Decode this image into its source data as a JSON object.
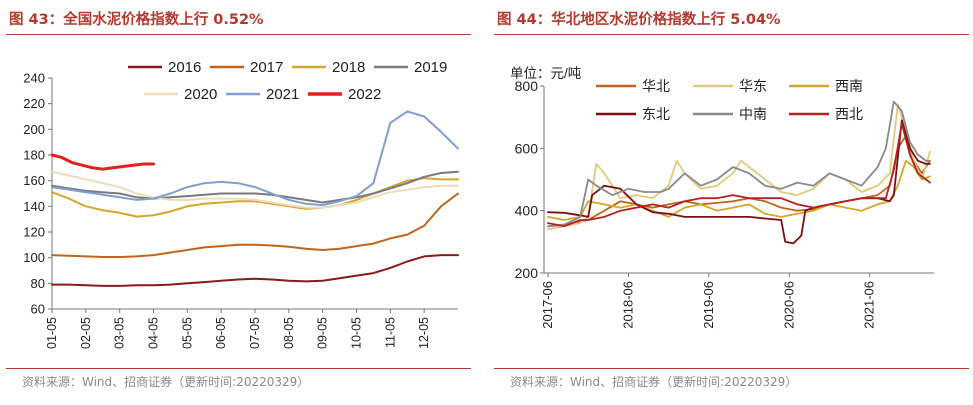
{
  "left": {
    "title": "图 43：全国水泥价格指数上行 0.52%",
    "source": "资料来源：Wind、招商证券（更新时间:20220329）"
  },
  "right": {
    "title": "图 44：华北地区水泥价格指数上行 5.04%",
    "source": "资料来源：Wind、招商证券（更新时间:20220329）"
  },
  "chart_data": [
    {
      "type": "line",
      "title": "全国水泥价格指数上行 0.52%",
      "xlabel": "",
      "ylabel": "",
      "ylim": [
        60,
        240
      ],
      "yticks": [
        60,
        80,
        100,
        120,
        140,
        160,
        180,
        200,
        220,
        240
      ],
      "xlim": [
        0,
        12
      ],
      "categories": [
        "01-05",
        "02-05",
        "03-05",
        "04-05",
        "05-05",
        "06-05",
        "07-05",
        "08-05",
        "09-05",
        "10-05",
        "11-05",
        "12-05"
      ],
      "legend": "top",
      "grid": false,
      "series": [
        {
          "name": "2016",
          "color": "#8b1a1a",
          "width": 2,
          "x": [
            0,
            0.5,
            1,
            1.5,
            2,
            2.5,
            3,
            3.5,
            4,
            4.5,
            5,
            5.5,
            6,
            6.5,
            7,
            7.5,
            8,
            8.5,
            9,
            9.5,
            10,
            10.5,
            11,
            11.5,
            12
          ],
          "values": [
            79,
            79,
            78.5,
            78,
            78,
            78.5,
            78.5,
            79,
            80,
            81,
            82,
            83,
            83.5,
            83,
            82,
            81.5,
            82,
            84,
            86,
            88,
            92,
            97,
            101,
            102,
            102
          ]
        },
        {
          "name": "2017",
          "color": "#c0651c",
          "width": 2,
          "x": [
            0,
            0.5,
            1,
            1.5,
            2,
            2.5,
            3,
            3.5,
            4,
            4.5,
            5,
            5.5,
            6,
            6.5,
            7,
            7.5,
            8,
            8.5,
            9,
            9.5,
            10,
            10.5,
            11,
            11.5,
            12
          ],
          "values": [
            102,
            101.5,
            101,
            100.5,
            100.5,
            101,
            102,
            104,
            106,
            108,
            109,
            110,
            110,
            109.5,
            108.5,
            107,
            106,
            107,
            109,
            111,
            115,
            118,
            125,
            140,
            150
          ]
        },
        {
          "name": "2018",
          "color": "#d4a62a",
          "width": 2,
          "x": [
            0,
            0.5,
            1,
            1.5,
            2,
            2.5,
            3,
            3.5,
            4,
            4.5,
            5,
            5.5,
            6,
            6.5,
            7,
            7.5,
            8,
            8.5,
            9,
            9.5,
            10,
            10.5,
            11,
            11.5,
            12
          ],
          "values": [
            151,
            146,
            140,
            137,
            135,
            132,
            133,
            136,
            140,
            142,
            143,
            144,
            144,
            142,
            140,
            138,
            139,
            141,
            145,
            150,
            155,
            160,
            162,
            161,
            161
          ]
        },
        {
          "name": "2019",
          "color": "#7a7a7a",
          "width": 2,
          "x": [
            0,
            0.5,
            1,
            1.5,
            2,
            2.5,
            3,
            3.5,
            4,
            4.5,
            5,
            5.5,
            6,
            6.5,
            7,
            7.5,
            8,
            8.5,
            9,
            9.5,
            10,
            10.5,
            11,
            11.5,
            12
          ],
          "values": [
            156,
            154,
            152,
            151,
            150,
            147,
            146,
            147,
            148,
            149,
            150,
            150,
            150,
            149,
            147,
            145,
            143,
            145,
            147,
            150,
            154,
            158,
            163,
            166,
            167
          ]
        },
        {
          "name": "2020",
          "color": "#efdcb8",
          "width": 2,
          "x": [
            0,
            0.5,
            1,
            1.5,
            2,
            2.5,
            3,
            3.5,
            4,
            4.5,
            5,
            5.5,
            6,
            6.5,
            7,
            7.5,
            8,
            8.5,
            9,
            9.5,
            10,
            10.5,
            11,
            11.5,
            12
          ],
          "values": [
            167,
            164,
            161,
            158,
            155,
            150,
            147,
            145,
            145,
            146,
            146,
            146,
            145,
            143,
            141,
            139,
            139,
            141,
            143,
            147,
            151,
            153,
            155,
            156,
            156
          ]
        },
        {
          "name": "2021",
          "color": "#7f9fd4",
          "width": 2,
          "x": [
            0,
            0.5,
            1,
            1.5,
            2,
            2.5,
            3,
            3.5,
            4,
            4.5,
            5,
            5.5,
            6,
            6.5,
            7,
            7.5,
            8,
            8.5,
            9,
            9.5,
            10,
            10.5,
            11,
            11.5,
            12
          ],
          "values": [
            155,
            153,
            151,
            149,
            147,
            145,
            146,
            150,
            155,
            158,
            159,
            158,
            155,
            150,
            145,
            142,
            141,
            144,
            148,
            158,
            205,
            214,
            210,
            198,
            185
          ]
        },
        {
          "name": "2022",
          "color": "#e3201c",
          "width": 3,
          "x": [
            0,
            0.3,
            0.6,
            0.9,
            1.2,
            1.5,
            1.8,
            2.1,
            2.4,
            2.7,
            3
          ],
          "values": [
            180,
            178,
            174,
            172,
            170,
            169,
            170,
            171,
            172,
            173,
            173
          ]
        }
      ]
    },
    {
      "type": "line",
      "title": "华北地区水泥价格指数上行 5.04%",
      "unit_label": "单位：元/吨",
      "ylim": [
        200,
        800
      ],
      "yticks": [
        200,
        400,
        600,
        800
      ],
      "xlim": [
        2017.45,
        2022.3
      ],
      "categories": [
        "2017-06",
        "2018-06",
        "2019-06",
        "2020-06",
        "2021-06"
      ],
      "category_positions": [
        2017.5,
        2018.5,
        2019.5,
        2020.5,
        2021.5
      ],
      "legend": "top",
      "grid": false,
      "series": [
        {
          "name": "华北",
          "color": "#c0651c",
          "width": 1.8,
          "x": [
            2017.5,
            2017.7,
            2017.9,
            2018.0,
            2018.2,
            2018.4,
            2018.6,
            2018.8,
            2019.0,
            2019.2,
            2019.4,
            2019.6,
            2019.8,
            2020.0,
            2020.2,
            2020.4,
            2020.6,
            2020.8,
            2021.0,
            2021.2,
            2021.4,
            2021.6,
            2021.75,
            2021.85,
            2021.95,
            2022.05,
            2022.15,
            2022.25
          ],
          "values": [
            350,
            355,
            365,
            370,
            400,
            430,
            420,
            410,
            420,
            430,
            420,
            425,
            430,
            440,
            430,
            410,
            400,
            405,
            420,
            430,
            440,
            450,
            480,
            600,
            640,
            560,
            520,
            560
          ]
        },
        {
          "name": "华东",
          "color": "#e2c97a",
          "width": 1.8,
          "x": [
            2017.5,
            2017.7,
            2017.9,
            2018.0,
            2018.1,
            2018.2,
            2018.4,
            2018.6,
            2018.8,
            2019.0,
            2019.1,
            2019.2,
            2019.4,
            2019.6,
            2019.8,
            2019.9,
            2020.0,
            2020.2,
            2020.4,
            2020.6,
            2020.8,
            2021.0,
            2021.2,
            2021.4,
            2021.6,
            2021.75,
            2021.85,
            2021.95,
            2022.05,
            2022.15,
            2022.25
          ],
          "values": [
            340,
            350,
            360,
            380,
            550,
            520,
            440,
            450,
            440,
            480,
            560,
            520,
            470,
            480,
            520,
            560,
            540,
            500,
            460,
            450,
            470,
            520,
            500,
            460,
            480,
            520,
            740,
            660,
            560,
            500,
            590
          ]
        },
        {
          "name": "西南",
          "color": "#d4a62a",
          "width": 1.8,
          "x": [
            2017.5,
            2017.7,
            2017.9,
            2018.0,
            2018.2,
            2018.4,
            2018.6,
            2018.8,
            2019.0,
            2019.2,
            2019.4,
            2019.6,
            2019.8,
            2020.0,
            2020.2,
            2020.4,
            2020.6,
            2020.8,
            2021.0,
            2021.2,
            2021.4,
            2021.6,
            2021.75,
            2021.85,
            2021.95,
            2022.05,
            2022.15,
            2022.25
          ],
          "values": [
            380,
            370,
            380,
            430,
            420,
            410,
            420,
            400,
            380,
            410,
            420,
            400,
            410,
            420,
            390,
            380,
            390,
            400,
            420,
            410,
            400,
            420,
            430,
            480,
            560,
            540,
            500,
            510
          ]
        },
        {
          "name": "东北",
          "color": "#7a0f0f",
          "width": 1.8,
          "x": [
            2017.5,
            2017.7,
            2017.9,
            2018.0,
            2018.05,
            2018.2,
            2018.4,
            2018.6,
            2018.8,
            2019.0,
            2019.2,
            2019.4,
            2019.6,
            2019.8,
            2020.0,
            2020.2,
            2020.4,
            2020.45,
            2020.55,
            2020.65,
            2020.7,
            2020.8,
            2021.0,
            2021.2,
            2021.4,
            2021.6,
            2021.75,
            2021.8,
            2021.9,
            2022.0,
            2022.1,
            2022.2,
            2022.25
          ],
          "values": [
            395,
            393,
            385,
            380,
            450,
            480,
            470,
            420,
            395,
            390,
            380,
            380,
            380,
            380,
            380,
            375,
            370,
            300,
            295,
            320,
            400,
            410,
            420,
            430,
            440,
            440,
            430,
            450,
            690,
            600,
            560,
            550,
            550
          ]
        },
        {
          "name": "中南",
          "color": "#8a8a8a",
          "width": 1.8,
          "x": [
            2017.5,
            2017.7,
            2017.9,
            2018.0,
            2018.1,
            2018.3,
            2018.5,
            2018.7,
            2018.9,
            2019.0,
            2019.2,
            2019.4,
            2019.6,
            2019.8,
            2020.0,
            2020.2,
            2020.4,
            2020.6,
            2020.8,
            2021.0,
            2021.2,
            2021.4,
            2021.6,
            2021.7,
            2021.8,
            2021.9,
            2022.0,
            2022.1,
            2022.2,
            2022.25
          ],
          "values": [
            350,
            355,
            380,
            500,
            480,
            450,
            470,
            460,
            460,
            470,
            520,
            480,
            500,
            540,
            520,
            480,
            470,
            490,
            480,
            520,
            500,
            480,
            540,
            600,
            750,
            720,
            620,
            580,
            560,
            560
          ]
        },
        {
          "name": "西北",
          "color": "#b22222",
          "width": 1.8,
          "x": [
            2017.5,
            2017.7,
            2017.9,
            2018.0,
            2018.2,
            2018.4,
            2018.6,
            2018.8,
            2019.0,
            2019.2,
            2019.4,
            2019.6,
            2019.8,
            2020.0,
            2020.2,
            2020.4,
            2020.6,
            2020.8,
            2021.0,
            2021.2,
            2021.4,
            2021.6,
            2021.7,
            2021.8,
            2021.9,
            2022.0,
            2022.1,
            2022.2,
            2022.25
          ],
          "values": [
            360,
            350,
            370,
            370,
            380,
            400,
            410,
            420,
            410,
            430,
            440,
            440,
            450,
            440,
            440,
            440,
            420,
            410,
            420,
            430,
            440,
            440,
            440,
            530,
            680,
            580,
            520,
            500,
            490
          ]
        }
      ]
    }
  ]
}
